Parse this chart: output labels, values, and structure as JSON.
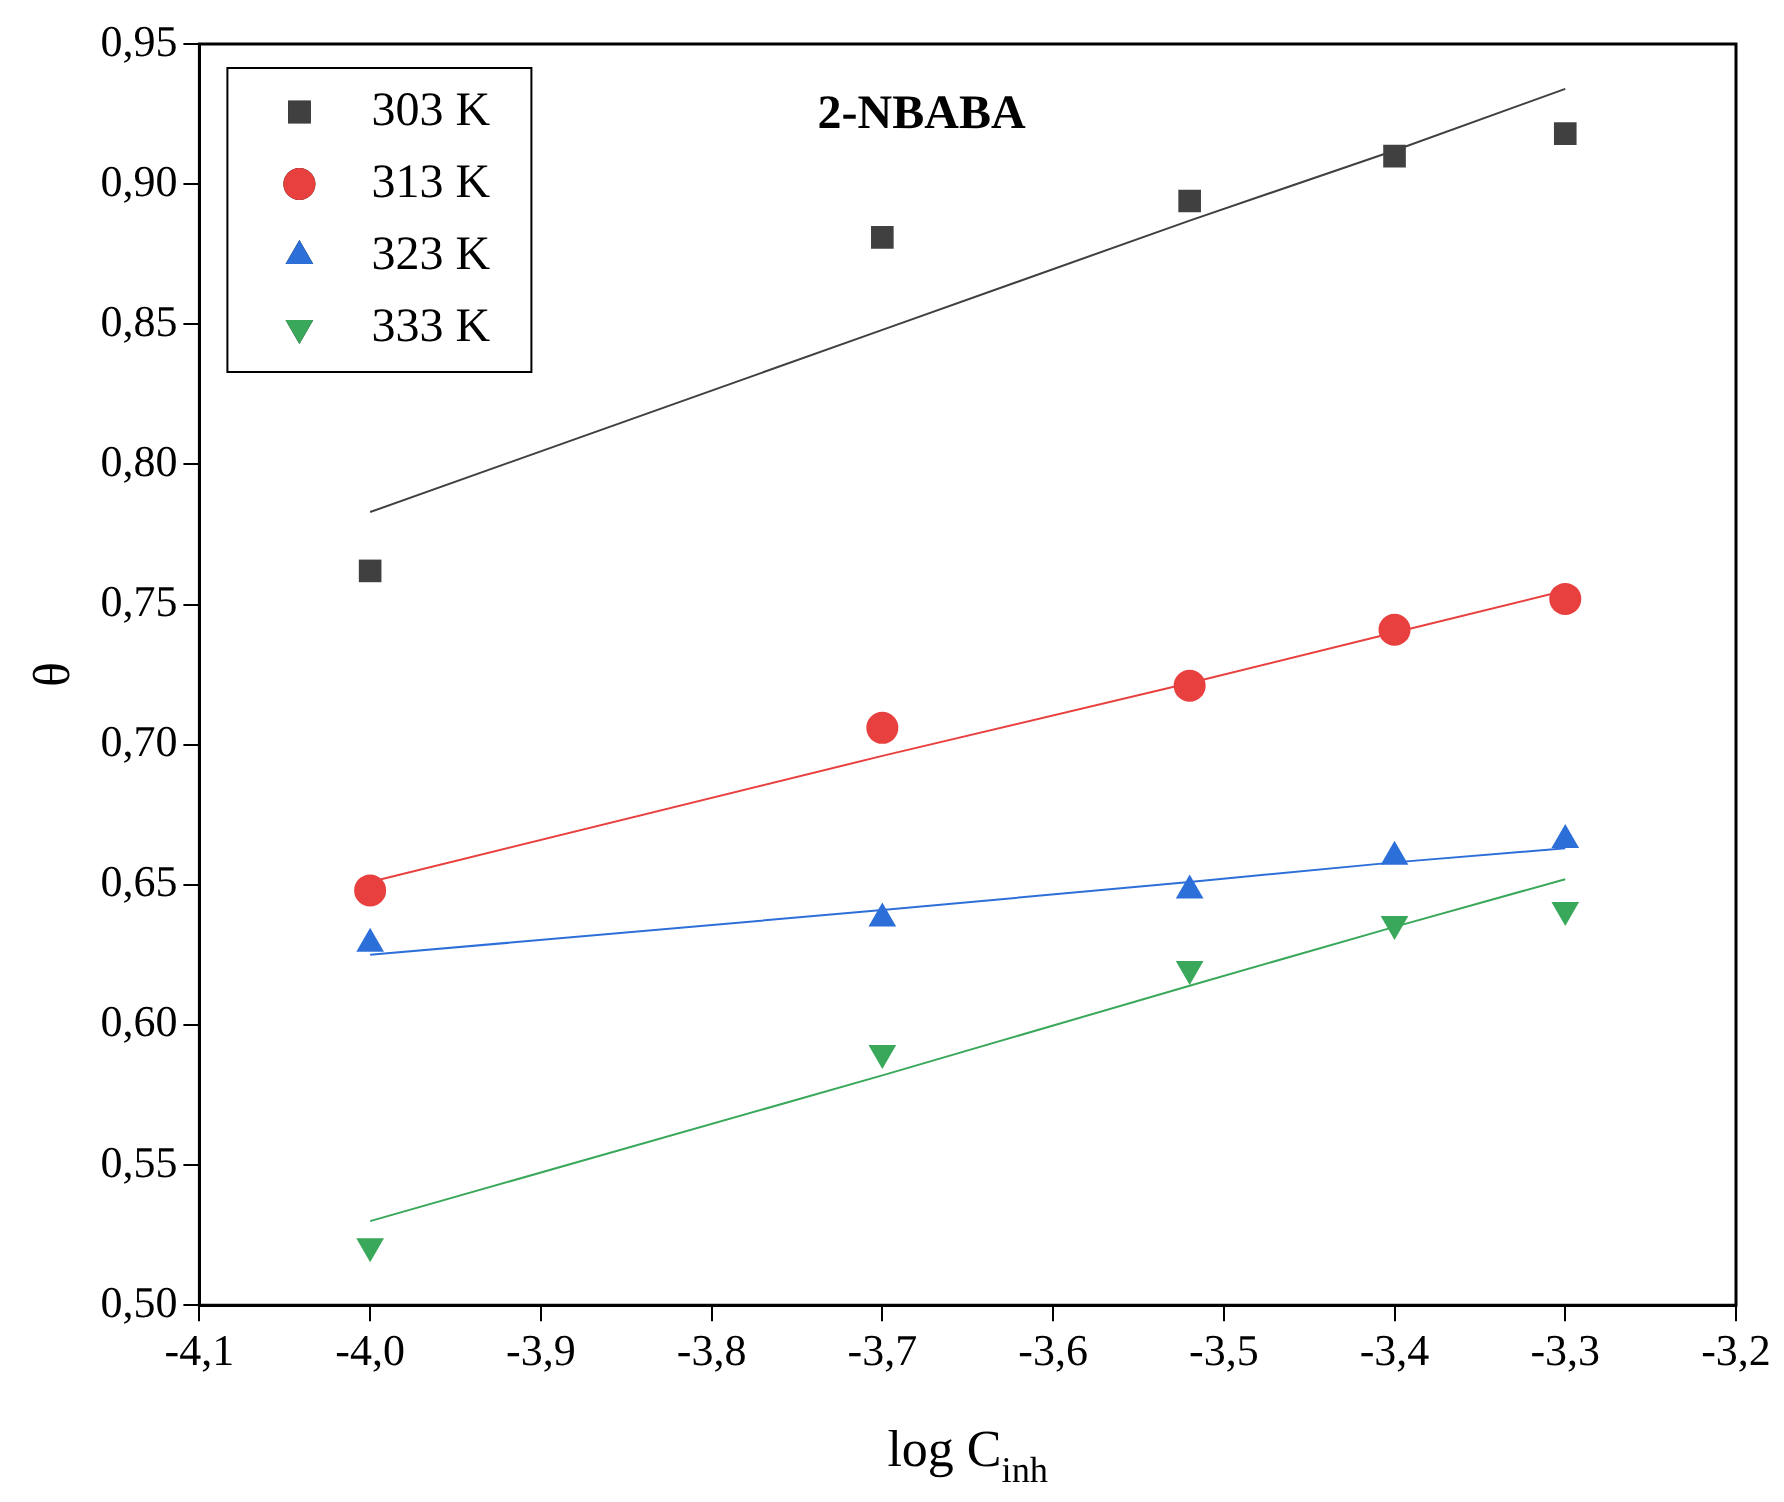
{
  "chart_data": {
    "type": "scatter",
    "title": "2-NBABA",
    "xlabel": "log C$_{inh}$",
    "ylabel": "θ",
    "xlim": [
      -4.1,
      -3.2
    ],
    "ylim": [
      0.5,
      0.95
    ],
    "xticks": [
      {
        "value": -4.1,
        "label": "-4,1"
      },
      {
        "value": -4.0,
        "label": "-4,0"
      },
      {
        "value": -3.9,
        "label": "-3,9"
      },
      {
        "value": -3.8,
        "label": "-3,8"
      },
      {
        "value": -3.7,
        "label": "-3,7"
      },
      {
        "value": -3.6,
        "label": "-3,6"
      },
      {
        "value": -3.5,
        "label": "-3,5"
      },
      {
        "value": -3.4,
        "label": "-3,4"
      },
      {
        "value": -3.3,
        "label": "-3,3"
      },
      {
        "value": -3.2,
        "label": "-3,2"
      }
    ],
    "yticks": [
      {
        "value": 0.5,
        "label": "0,50"
      },
      {
        "value": 0.55,
        "label": "0,55"
      },
      {
        "value": 0.6,
        "label": "0,60"
      },
      {
        "value": 0.65,
        "label": "0,65"
      },
      {
        "value": 0.7,
        "label": "0,70"
      },
      {
        "value": 0.75,
        "label": "0,75"
      },
      {
        "value": 0.8,
        "label": "0,80"
      },
      {
        "value": 0.85,
        "label": "0,85"
      },
      {
        "value": 0.9,
        "label": "0,90"
      },
      {
        "value": 0.95,
        "label": "0,95"
      }
    ],
    "x": [
      -4.0,
      -3.7,
      -3.52,
      -3.4,
      -3.3
    ],
    "legend": "top left",
    "grid": false,
    "series": [
      {
        "name": "303 K",
        "color": "#404040",
        "marker": "square",
        "values": [
          0.762,
          0.881,
          0.894,
          0.91,
          0.918
        ]
      },
      {
        "name": "313 K",
        "color": "#e8403f",
        "marker": "circle",
        "values": [
          0.648,
          0.706,
          0.721,
          0.741,
          0.752
        ]
      },
      {
        "name": "323 K",
        "color": "#2d6fd8",
        "marker": "triangle",
        "values": [
          0.629,
          0.638,
          0.648,
          0.66,
          0.666
        ]
      },
      {
        "name": "333 K",
        "color": "#3aa85a",
        "marker": "triangle-down",
        "values": [
          0.521,
          0.59,
          0.62,
          0.636,
          0.641
        ]
      },
      {
        "type": "line",
        "color": "#404040",
        "marker": "none",
        "values": [
          0.783,
          0.848,
          0.887,
          0.912,
          0.934
        ]
      },
      {
        "type": "line",
        "color": "#e8403f",
        "marker": "none",
        "values": [
          0.651,
          0.696,
          0.722,
          0.74,
          0.755
        ]
      },
      {
        "type": "line",
        "color": "#2d6fd8",
        "marker": "none",
        "values": [
          0.625,
          0.641,
          0.651,
          0.658,
          0.663
        ]
      },
      {
        "type": "line",
        "color": "#3aa85a",
        "marker": "none",
        "values": [
          0.53,
          0.582,
          0.614,
          0.635,
          0.652
        ]
      }
    ]
  }
}
